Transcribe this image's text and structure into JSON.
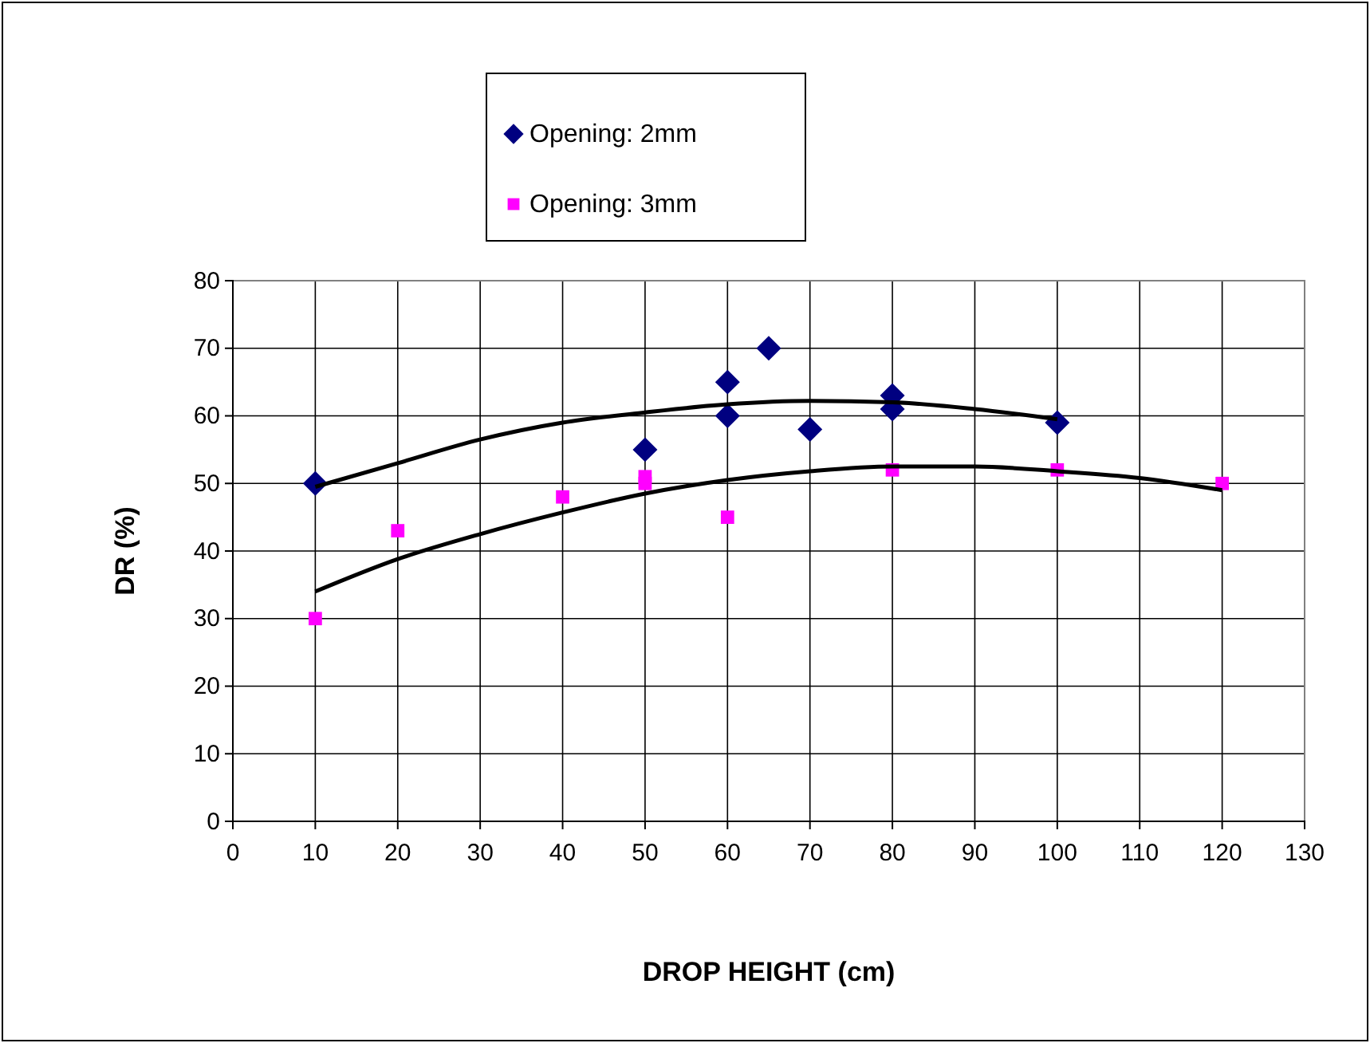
{
  "chart_data": {
    "type": "scatter",
    "xlabel": "DROP HEIGHT (cm)",
    "ylabel": "DR (%)",
    "xlim": [
      0,
      130
    ],
    "xticks": [
      0,
      10,
      20,
      30,
      40,
      50,
      60,
      70,
      80,
      90,
      100,
      110,
      120,
      130
    ],
    "ylim": [
      0,
      80
    ],
    "yticks": [
      0,
      10,
      20,
      30,
      40,
      50,
      60,
      70,
      80
    ],
    "grid": true,
    "legend": "top",
    "series": [
      {
        "name": "Opening: 2mm",
        "marker": "diamond",
        "color": "#000080",
        "x": [
          10,
          50,
          60,
          60,
          65,
          70,
          80,
          80,
          100
        ],
        "values": [
          50,
          55,
          65,
          60,
          70,
          58,
          63,
          61,
          59
        ]
      },
      {
        "name": "Opening: 3mm",
        "marker": "square",
        "color": "#ff00ff",
        "x": [
          10,
          20,
          40,
          50,
          50,
          60,
          80,
          100,
          120
        ],
        "values": [
          30,
          43,
          48,
          51,
          50,
          45,
          52,
          52,
          50
        ]
      },
      {
        "type": "line",
        "marker": "none",
        "color": "#000000",
        "x": [
          10,
          20,
          30,
          40,
          50,
          60,
          70,
          80,
          90,
          100
        ],
        "values": [
          49.5,
          53,
          56.5,
          59,
          60.5,
          61.7,
          62.2,
          62,
          61,
          59.5
        ]
      },
      {
        "type": "line",
        "marker": "none",
        "color": "#000000",
        "x": [
          10,
          20,
          30,
          40,
          50,
          60,
          70,
          80,
          90,
          100,
          110,
          120
        ],
        "values": [
          34,
          38.8,
          42.5,
          45.7,
          48.5,
          50.5,
          51.8,
          52.5,
          52.5,
          51.8,
          50.8,
          49
        ]
      }
    ]
  }
}
